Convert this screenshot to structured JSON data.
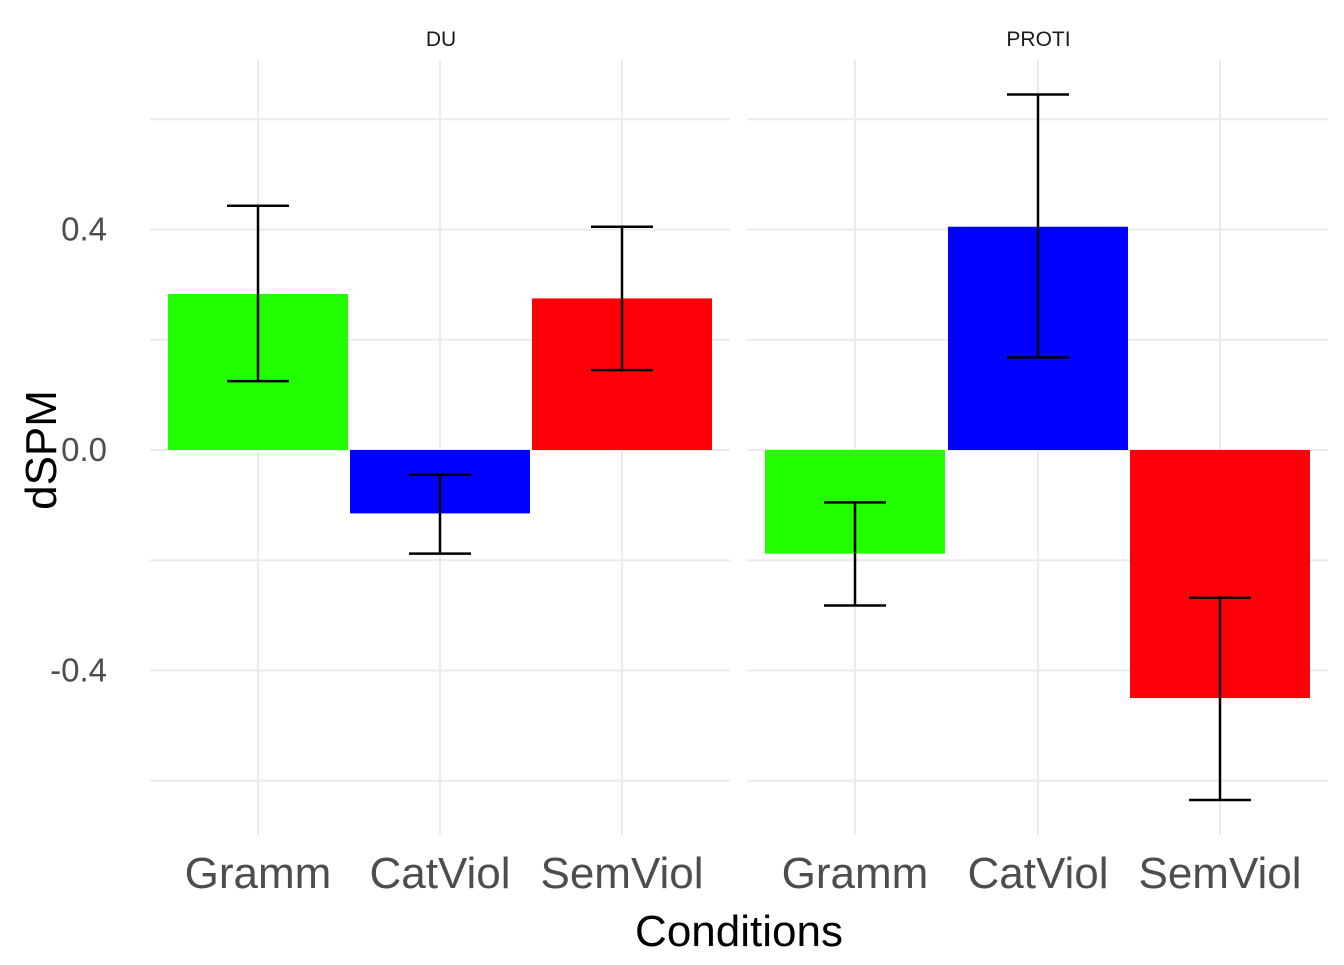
{
  "chart_data": {
    "type": "bar",
    "xlabel": "Conditions",
    "ylabel": "dSPM",
    "ylim": [
      -0.69,
      0.64
    ],
    "yticks": [
      -0.4,
      0.0,
      0.4
    ],
    "ytick_labels": [
      "-0.4",
      "0.0",
      "0.4"
    ],
    "grid": true,
    "legend": "none",
    "categories": [
      "Gramm",
      "CatViol",
      "SemViol"
    ],
    "colors": [
      "#22ff00",
      "#0000ff",
      "#ff0008"
    ],
    "panels": [
      {
        "title": "DU",
        "values": [
          0.283,
          -0.115,
          0.275
        ],
        "error_low": [
          0.125,
          -0.188,
          0.145
        ],
        "error_high": [
          0.443,
          -0.045,
          0.405
        ]
      },
      {
        "title": "PROTI",
        "values": [
          -0.188,
          0.405,
          -0.45
        ],
        "error_low": [
          -0.282,
          0.168,
          -0.635
        ],
        "error_high": [
          -0.095,
          0.645,
          -0.268
        ]
      }
    ]
  }
}
